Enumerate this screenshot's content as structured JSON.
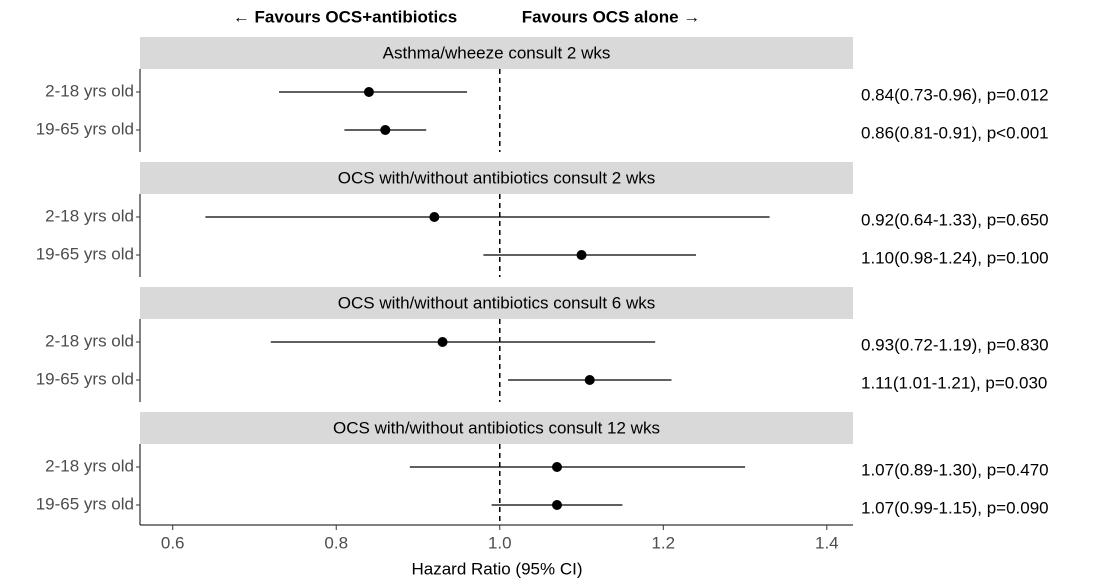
{
  "chart_data": {
    "type": "forest",
    "annotations": [
      "← Favours OCS+antibiotics",
      "Favours OCS alone →"
    ],
    "xlabel": "Hazard Ratio (95% CI)",
    "xlim": [
      0.56,
      1.432
    ],
    "xticks": [
      {
        "value": 0.6,
        "label": "0.6"
      },
      {
        "value": 0.8,
        "label": "0.8"
      },
      {
        "value": 1.0,
        "label": "1.0"
      },
      {
        "value": 1.2,
        "label": "1.2"
      },
      {
        "value": 1.4,
        "label": "1.4"
      }
    ],
    "ref_line": 1,
    "color": "#000000",
    "strip_color": "#d9d9d9",
    "panels": [
      {
        "title": "Asthma/wheeze consult 2 wks",
        "categories": [
          "2-18 yrs old",
          "19-65 yrs old"
        ],
        "values": [
          0.84,
          0.86
        ],
        "lower": [
          0.73,
          0.81
        ],
        "upper": [
          0.96,
          0.91
        ],
        "value_labels": [
          "0.84(0.73-0.96), p=0.012",
          "0.86(0.81-0.91), p<0.001"
        ]
      },
      {
        "title": "OCS with/without antibiotics consult 2 wks",
        "categories": [
          "2-18 yrs old",
          "19-65 yrs old"
        ],
        "values": [
          0.92,
          1.1
        ],
        "lower": [
          0.64,
          0.98
        ],
        "upper": [
          1.33,
          1.24
        ],
        "value_labels": [
          "0.92(0.64-1.33), p=0.650",
          "1.10(0.98-1.24), p=0.100"
        ]
      },
      {
        "title": "OCS with/without antibiotics consult 6 wks",
        "categories": [
          "2-18 yrs old",
          "19-65 yrs old"
        ],
        "values": [
          0.93,
          1.11
        ],
        "lower": [
          0.72,
          1.01
        ],
        "upper": [
          1.19,
          1.21
        ],
        "value_labels": [
          "0.93(0.72-1.19), p=0.830",
          "1.11(1.01-1.21), p=0.030"
        ]
      },
      {
        "title": "OCS with/without antibiotics consult 12 wks",
        "categories": [
          "2-18 yrs old",
          "19-65 yrs old"
        ],
        "values": [
          1.07,
          1.07
        ],
        "lower": [
          0.89,
          0.99
        ],
        "upper": [
          1.3,
          1.15
        ],
        "value_labels": [
          "1.07(0.89-1.30), p=0.470",
          "1.07(0.99-1.15), p=0.090"
        ]
      }
    ]
  }
}
